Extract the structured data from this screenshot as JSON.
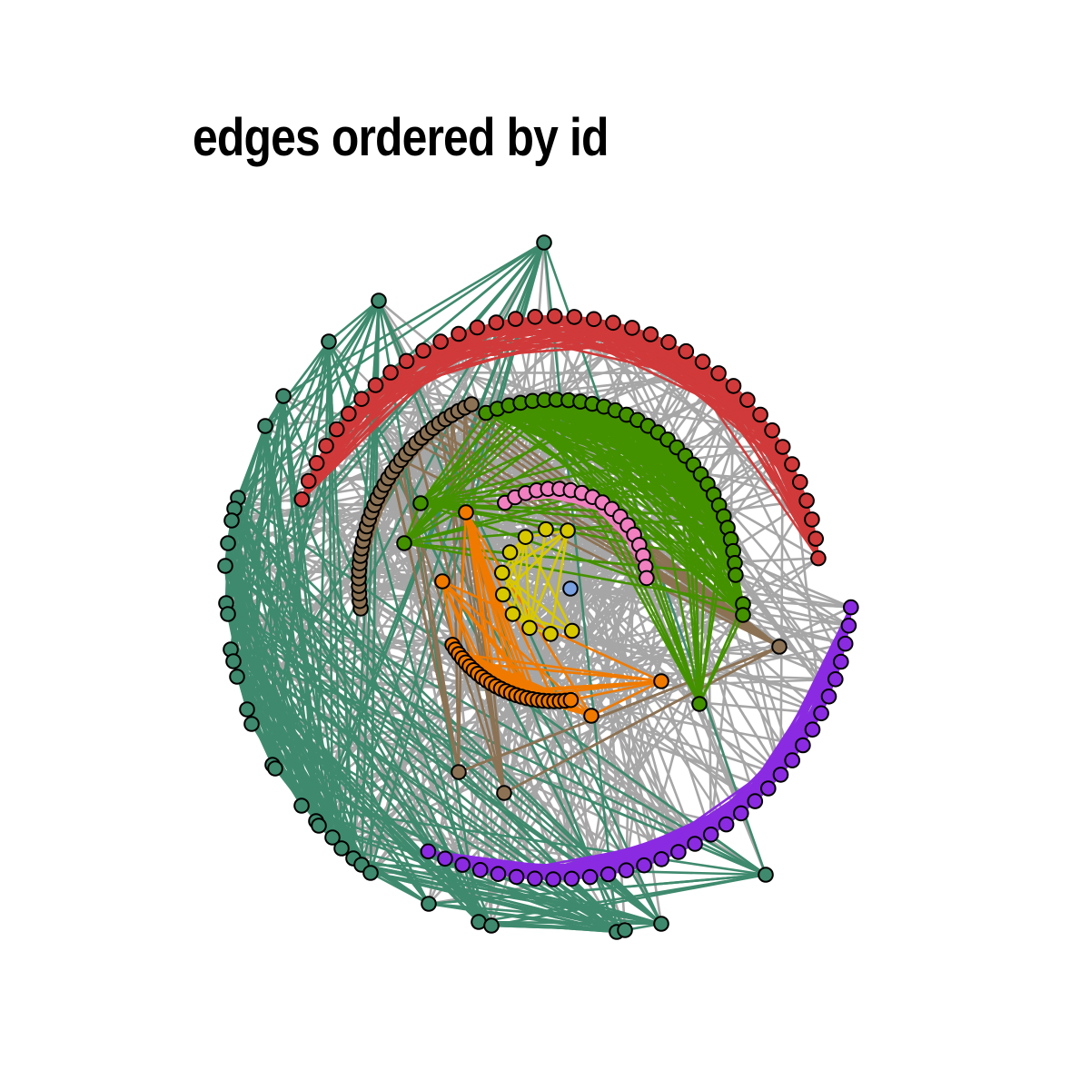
{
  "title": "edges ordered by id",
  "colors": {
    "background": "#ffffff",
    "inter_group_edge": "#a6a6a6",
    "node_outline": "#000000"
  },
  "groups": [
    {
      "id": "red",
      "color": "#d13a3a"
    },
    {
      "id": "teal",
      "color": "#3f8a6e"
    },
    {
      "id": "brown",
      "color": "#8c7254"
    },
    {
      "id": "green",
      "color": "#449100"
    },
    {
      "id": "purple",
      "color": "#8a2be2"
    },
    {
      "id": "orange",
      "color": "#f07a00"
    },
    {
      "id": "pink",
      "color": "#f080c0"
    },
    {
      "id": "yellow",
      "color": "#d8c800"
    },
    {
      "id": "blue",
      "color": "#7ba0e0"
    }
  ]
}
